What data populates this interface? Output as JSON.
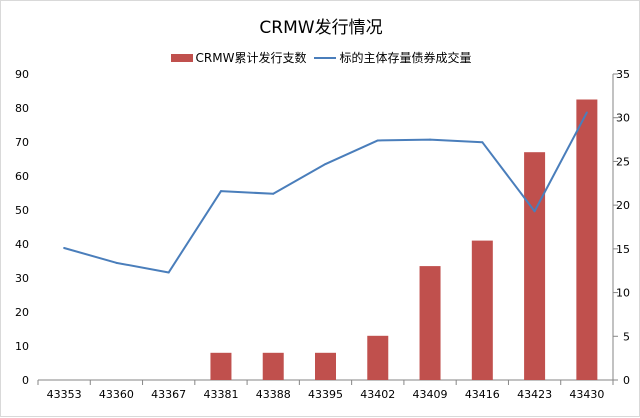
{
  "chart_data": {
    "type": "bar",
    "title": "CRMW发行情况",
    "categories": [
      "43353",
      "43360",
      "43367",
      "43381",
      "43388",
      "43395",
      "43402",
      "43409",
      "43416",
      "43423",
      "43430"
    ],
    "series": [
      {
        "name": "CRMW累计发行支数",
        "type": "bar",
        "axis": "left",
        "color": "#c0504d",
        "values": [
          0,
          0,
          0,
          8,
          8,
          8,
          13,
          33.5,
          41,
          67,
          82.5
        ]
      },
      {
        "name": "标的主体存量债券成交量",
        "type": "line",
        "axis": "right",
        "color": "#4a7ebb",
        "values": [
          15.1,
          13.4,
          12.3,
          21.6,
          21.3,
          24.7,
          27.4,
          27.5,
          27.2,
          19.3,
          30.6
        ]
      }
    ],
    "ylim_left": [
      0,
      90
    ],
    "yticks_left": [
      "0",
      "10",
      "20",
      "30",
      "40",
      "50",
      "60",
      "70",
      "80",
      "90"
    ],
    "ylim_right": [
      0,
      35
    ],
    "yticks_right": [
      "0",
      "5",
      "10",
      "15",
      "20",
      "25",
      "30",
      "35"
    ],
    "grid": false,
    "legend_position": "top"
  }
}
